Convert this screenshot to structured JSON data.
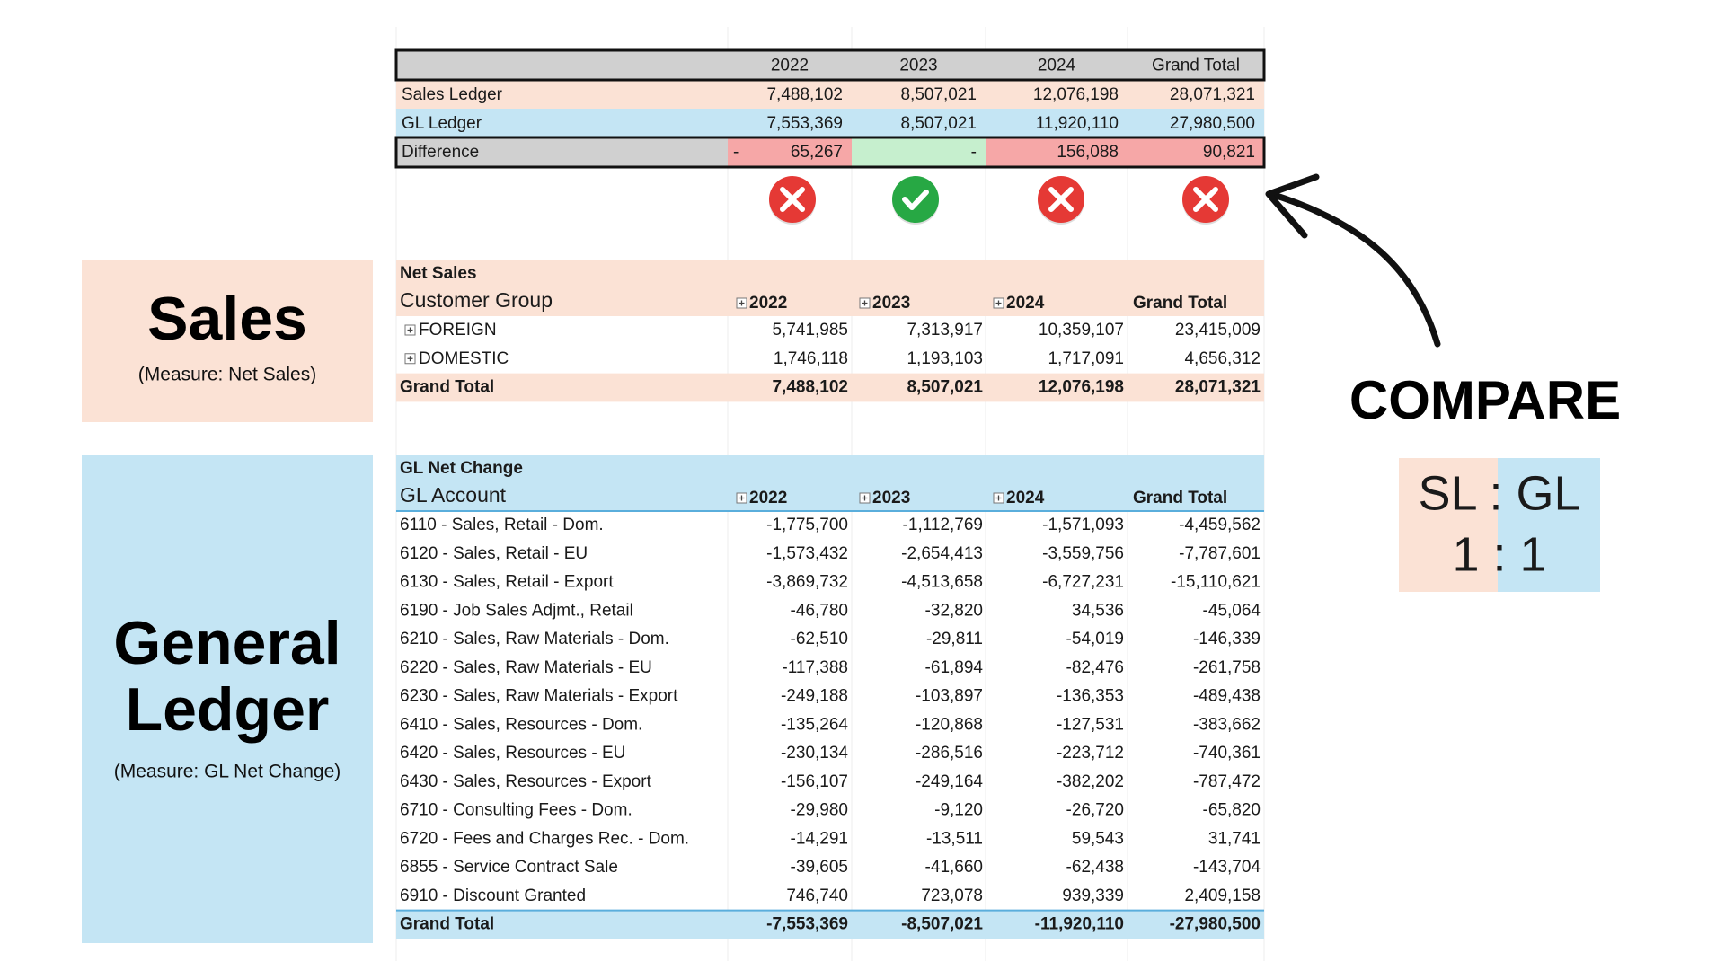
{
  "comparison": {
    "header": [
      "2022",
      "2023",
      "2024",
      "Grand Total"
    ],
    "rows": [
      {
        "label": "Sales Ledger",
        "cells": [
          "7,488,102",
          "8,507,021",
          "12,076,198",
          "28,071,321"
        ]
      },
      {
        "label": "GL Ledger",
        "cells": [
          "7,553,369",
          "8,507,021",
          "11,920,110",
          "27,980,500"
        ]
      }
    ],
    "difference": {
      "label": "Difference",
      "cells": [
        {
          "sign": "-",
          "amount": "65,267",
          "status": "fail"
        },
        {
          "amount": "-",
          "status": "pass"
        },
        {
          "amount": "156,088",
          "status": "fail"
        },
        {
          "amount": "90,821",
          "status": "fail"
        }
      ]
    }
  },
  "sales_panel": {
    "title": [
      "Sales"
    ],
    "note": "(Measure: Net Sales)"
  },
  "gl_panel": {
    "title": [
      "General",
      "Ledger"
    ],
    "note": "(Measure: GL Net Change)"
  },
  "compare": {
    "title": "COMPARE",
    "ratio": [
      "SL : GL",
      "1 : 1"
    ]
  },
  "sales_pivot": {
    "measure": "Net Sales",
    "row_header": "Customer Group",
    "columns": [
      "2022",
      "2023",
      "2024",
      "Grand Total"
    ],
    "rows": [
      {
        "label": "FOREIGN",
        "expandable": true,
        "values": [
          "5,741,985",
          "7,313,917",
          "10,359,107",
          "23,415,009"
        ]
      },
      {
        "label": "DOMESTIC",
        "expandable": true,
        "values": [
          "1,746,118",
          "1,193,103",
          "1,717,091",
          "4,656,312"
        ]
      }
    ],
    "total": {
      "label": "Grand Total",
      "values": [
        "7,488,102",
        "8,507,021",
        "12,076,198",
        "28,071,321"
      ]
    }
  },
  "gl_pivot": {
    "measure": "GL Net Change",
    "row_header": "GL Account",
    "columns": [
      "2022",
      "2023",
      "2024",
      "Grand Total"
    ],
    "rows": [
      {
        "label": "6110 - Sales, Retail - Dom.",
        "values": [
          "-1,775,700",
          "-1,112,769",
          "-1,571,093",
          "-4,459,562"
        ]
      },
      {
        "label": "6120 - Sales, Retail - EU",
        "values": [
          "-1,573,432",
          "-2,654,413",
          "-3,559,756",
          "-7,787,601"
        ]
      },
      {
        "label": "6130 - Sales, Retail - Export",
        "values": [
          "-3,869,732",
          "-4,513,658",
          "-6,727,231",
          "-15,110,621"
        ]
      },
      {
        "label": "6190 - Job Sales Adjmt., Retail",
        "values": [
          "-46,780",
          "-32,820",
          "34,536",
          "-45,064"
        ]
      },
      {
        "label": "6210 - Sales, Raw Materials - Dom.",
        "values": [
          "-62,510",
          "-29,811",
          "-54,019",
          "-146,339"
        ]
      },
      {
        "label": "6220 - Sales, Raw Materials - EU",
        "values": [
          "-117,388",
          "-61,894",
          "-82,476",
          "-261,758"
        ]
      },
      {
        "label": "6230 - Sales, Raw Materials - Export",
        "values": [
          "-249,188",
          "-103,897",
          "-136,353",
          "-489,438"
        ]
      },
      {
        "label": "6410 - Sales, Resources - Dom.",
        "values": [
          "-135,264",
          "-120,868",
          "-127,531",
          "-383,662"
        ]
      },
      {
        "label": "6420 - Sales, Resources - EU",
        "values": [
          "-230,134",
          "-286,516",
          "-223,712",
          "-740,361"
        ]
      },
      {
        "label": "6430 - Sales, Resources - Export",
        "values": [
          "-156,107",
          "-249,164",
          "-382,202",
          "-787,472"
        ]
      },
      {
        "label": "6710 - Consulting Fees - Dom.",
        "values": [
          "-29,980",
          "-9,120",
          "-26,720",
          "-65,820"
        ]
      },
      {
        "label": "6720 - Fees and Charges Rec. - Dom.",
        "values": [
          "-14,291",
          "-13,511",
          "59,543",
          "31,741"
        ]
      },
      {
        "label": "6855 - Service Contract Sale",
        "values": [
          "-39,605",
          "-41,660",
          "-62,438",
          "-143,704"
        ]
      },
      {
        "label": "6910 - Discount Granted",
        "values": [
          "746,740",
          "723,078",
          "939,339",
          "2,409,158"
        ]
      }
    ],
    "total": {
      "label": "Grand Total",
      "values": [
        "-7,553,369",
        "-8,507,021",
        "-11,920,110",
        "-27,980,500"
      ]
    }
  }
}
